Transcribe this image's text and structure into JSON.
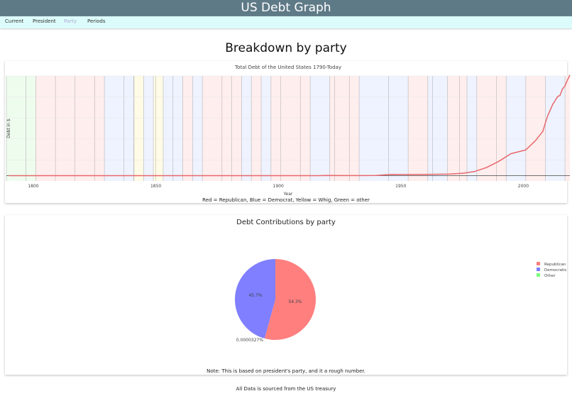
{
  "header": {
    "title": "US Debt Graph"
  },
  "nav": {
    "items": [
      {
        "label": "Current",
        "active": false
      },
      {
        "label": "President",
        "active": false
      },
      {
        "label": "Party",
        "active": true
      },
      {
        "label": "Periods",
        "active": false
      }
    ]
  },
  "page_title": "Breakdown by party",
  "colors": {
    "Republican": "#ff7f7f",
    "Democratic": "#7f7fff",
    "Other": "#7fff7f",
    "Whig": "#ffff99"
  },
  "chart_data": [
    {
      "type": "line",
      "title": "Total Debt of the United States 1790-Today",
      "xlabel": "Year",
      "ylabel": "Debt in $",
      "xlim": [
        1789,
        2019
      ],
      "ylim": [
        -1200000000000,
        22500000000000
      ],
      "xticks": [
        1800,
        1850,
        1900,
        1950,
        2000
      ],
      "grid": true,
      "caption": "Red = Republican, Blue = Democrat, Yellow = Whig, Green = other",
      "series": [
        {
          "x": [
            1790,
            1800,
            1820,
            1840,
            1860,
            1866,
            1900,
            1917,
            1919,
            1930,
            1940,
            1946,
            1950,
            1960,
            1970,
            1975,
            1980,
            1985,
            1990,
            1995,
            2000,
            2001,
            2005,
            2008,
            2009,
            2010,
            2012,
            2014,
            2015,
            2016,
            2017,
            2018,
            2019
          ],
          "y": [
            75000000,
            83000000,
            91000000,
            3500000000,
            65000000,
            2770000000,
            2140000000,
            2980000000,
            27400000000,
            16200000000,
            43000000000,
            269000000000,
            257000000000,
            286000000000,
            371000000000,
            533000000000,
            908000000000,
            1820000000000,
            3230000000000,
            4970000000000,
            5670000000000,
            5810000000000,
            7930000000000,
            10020000000000,
            11910000000000,
            13560000000000,
            16070000000000,
            17820000000000,
            18150000000000,
            19570000000000,
            20240000000000,
            21520000000000,
            22720000000000
          ]
        }
      ],
      "party_periods": [
        {
          "start": 1789,
          "end": 1797,
          "party": "Other"
        },
        {
          "start": 1797,
          "end": 1801,
          "party": "Other"
        },
        {
          "start": 1801,
          "end": 1809,
          "party": "Republican"
        },
        {
          "start": 1809,
          "end": 1817,
          "party": "Republican"
        },
        {
          "start": 1817,
          "end": 1825,
          "party": "Republican"
        },
        {
          "start": 1825,
          "end": 1829,
          "party": "Republican"
        },
        {
          "start": 1829,
          "end": 1837,
          "party": "Democratic"
        },
        {
          "start": 1837,
          "end": 1841,
          "party": "Democratic"
        },
        {
          "start": 1841,
          "end": 1841.1,
          "party": "Whig"
        },
        {
          "start": 1841.1,
          "end": 1845,
          "party": "Whig"
        },
        {
          "start": 1845,
          "end": 1849,
          "party": "Democratic"
        },
        {
          "start": 1849,
          "end": 1850,
          "party": "Whig"
        },
        {
          "start": 1850,
          "end": 1853,
          "party": "Whig"
        },
        {
          "start": 1853,
          "end": 1857,
          "party": "Democratic"
        },
        {
          "start": 1857,
          "end": 1861,
          "party": "Democratic"
        },
        {
          "start": 1861,
          "end": 1865,
          "party": "Republican"
        },
        {
          "start": 1865,
          "end": 1869,
          "party": "Democratic"
        },
        {
          "start": 1869,
          "end": 1877,
          "party": "Republican"
        },
        {
          "start": 1877,
          "end": 1881,
          "party": "Republican"
        },
        {
          "start": 1881,
          "end": 1885,
          "party": "Republican"
        },
        {
          "start": 1885,
          "end": 1889,
          "party": "Democratic"
        },
        {
          "start": 1889,
          "end": 1893,
          "party": "Republican"
        },
        {
          "start": 1893,
          "end": 1897,
          "party": "Democratic"
        },
        {
          "start": 1897,
          "end": 1901,
          "party": "Republican"
        },
        {
          "start": 1901,
          "end": 1909,
          "party": "Republican"
        },
        {
          "start": 1909,
          "end": 1913,
          "party": "Republican"
        },
        {
          "start": 1913,
          "end": 1921,
          "party": "Democratic"
        },
        {
          "start": 1921,
          "end": 1923,
          "party": "Republican"
        },
        {
          "start": 1923,
          "end": 1929,
          "party": "Republican"
        },
        {
          "start": 1929,
          "end": 1933,
          "party": "Republican"
        },
        {
          "start": 1933,
          "end": 1945,
          "party": "Democratic"
        },
        {
          "start": 1945,
          "end": 1953,
          "party": "Democratic"
        },
        {
          "start": 1953,
          "end": 1961,
          "party": "Republican"
        },
        {
          "start": 1961,
          "end": 1963,
          "party": "Democratic"
        },
        {
          "start": 1963,
          "end": 1969,
          "party": "Democratic"
        },
        {
          "start": 1969,
          "end": 1974,
          "party": "Republican"
        },
        {
          "start": 1974,
          "end": 1977,
          "party": "Republican"
        },
        {
          "start": 1977,
          "end": 1981,
          "party": "Democratic"
        },
        {
          "start": 1981,
          "end": 1989,
          "party": "Republican"
        },
        {
          "start": 1989,
          "end": 1993,
          "party": "Republican"
        },
        {
          "start": 1993,
          "end": 2001,
          "party": "Democratic"
        },
        {
          "start": 2001,
          "end": 2009,
          "party": "Republican"
        },
        {
          "start": 2009,
          "end": 2017,
          "party": "Democratic"
        },
        {
          "start": 2017,
          "end": 2019,
          "party": "Republican"
        }
      ]
    },
    {
      "type": "pie",
      "title": "Debt Contributions by party",
      "legend": "right",
      "slices": [
        {
          "label": "Republican",
          "value": 54.3,
          "text": "54.3%",
          "color": "#ff7f7f"
        },
        {
          "label": "Democratic",
          "value": 45.7,
          "text": "45.7%",
          "color": "#7f7fff"
        },
        {
          "label": "Other",
          "value": 3.27e-05,
          "text": "0.0000327%",
          "color": "#7fff7f"
        }
      ],
      "note": "Note: This is based on president's party, and it a rough number."
    }
  ],
  "footer": "All Data is sourced from the US treasury"
}
